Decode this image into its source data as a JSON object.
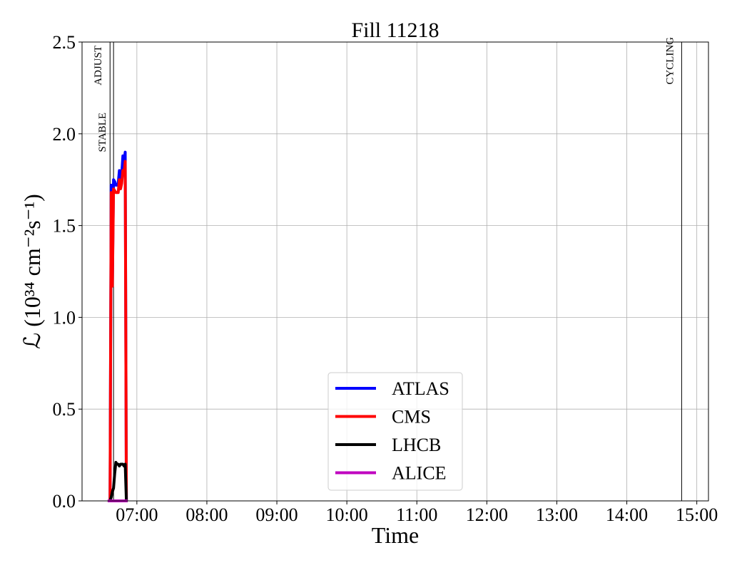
{
  "chart_data": {
    "type": "line",
    "title": "Fill 11218",
    "xlabel": "Time",
    "ylabel": "ℒ (10³⁴ cm⁻²s⁻¹)",
    "x": [
      "06:35",
      "06:37",
      "06:38",
      "06:39",
      "06:40",
      "06:41",
      "06:42",
      "06:43",
      "06:44",
      "06:45",
      "06:46",
      "06:47",
      "06:48",
      "06:49",
      "06:50",
      "06:51",
      "06:52"
    ],
    "series": [
      {
        "name": "ATLAS",
        "color": "#0000ff",
        "values": [
          0,
          0,
          1.72,
          1.2,
          1.75,
          1.74,
          1.72,
          1.72,
          1.73,
          1.8,
          1.75,
          1.78,
          1.88,
          1.85,
          1.9,
          0,
          0
        ]
      },
      {
        "name": "CMS",
        "color": "#ff0000",
        "values": [
          0,
          0,
          1.68,
          1.17,
          1.7,
          1.69,
          1.68,
          1.68,
          1.68,
          1.75,
          1.7,
          1.73,
          1.8,
          1.78,
          1.85,
          0,
          0
        ]
      },
      {
        "name": "LHCB",
        "color": "#000000",
        "values": [
          0,
          0,
          0.02,
          0.05,
          0.07,
          0.15,
          0.21,
          0.2,
          0.2,
          0.19,
          0.2,
          0.2,
          0.2,
          0.19,
          0.2,
          0,
          0
        ]
      },
      {
        "name": "ALICE",
        "color": "#bf00bf",
        "values": [
          0,
          0,
          0,
          0,
          0,
          0,
          0,
          0,
          0,
          0,
          0,
          0,
          0,
          0,
          0,
          0,
          0
        ]
      }
    ],
    "xlim": [
      "06:13",
      "15:10"
    ],
    "xticks": [
      "07:00",
      "08:00",
      "09:00",
      "10:00",
      "11:00",
      "12:00",
      "13:00",
      "14:00",
      "15:00"
    ],
    "ylim": [
      0,
      2.5
    ],
    "yticks": [
      {
        "value": 0,
        "label": "0.0"
      },
      0.5,
      {
        "value": 1,
        "label": "1.0"
      },
      1.5,
      {
        "value": 2,
        "label": "2.0"
      },
      2.5
    ],
    "annotations": [
      {
        "x": "06:37",
        "label": "STABLE"
      },
      {
        "x": "06:40",
        "label": "ADJUST"
      },
      {
        "x": "14:47",
        "label": "CYCLING"
      }
    ],
    "grid": true,
    "legend": "lower center"
  }
}
